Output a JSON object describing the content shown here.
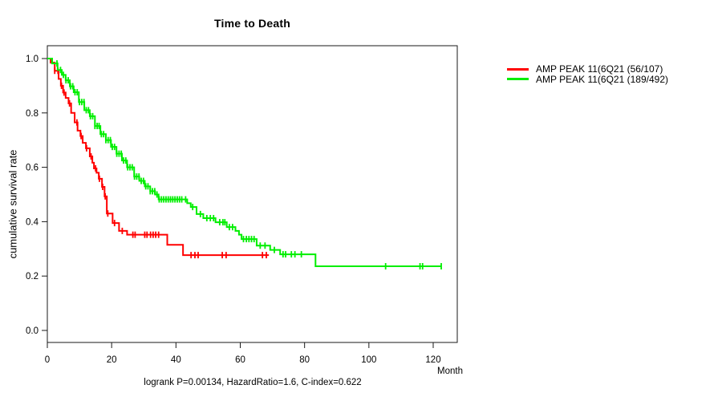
{
  "title": "Time to Death",
  "caption": "logrank P=0.00134, HazardRatio=1.6, C-index=0.622",
  "x_axis_title": "Month",
  "y_axis_title": "cumulative survival rate",
  "legend": {
    "items": [
      {
        "label": "AMP PEAK 11(6Q21 (56/107)",
        "color": "#ff0000"
      },
      {
        "label": "AMP PEAK 11(6Q21 (189/492)",
        "color": "#00ee00"
      }
    ]
  },
  "chart_data": {
    "type": "line",
    "subtype": "kaplan-meier-step",
    "title": "Time to Death",
    "xlabel": "Month",
    "ylabel": "cumulative survival rate",
    "xlim": [
      0,
      127.5
    ],
    "ylim": [
      0,
      1.0
    ],
    "x_ticks": [
      0,
      20,
      40,
      60,
      80,
      100,
      120
    ],
    "y_ticks": [
      0.0,
      0.2,
      0.4,
      0.6,
      0.8,
      1.0
    ],
    "y_tick_labels": [
      "0.0",
      "0.2",
      "0.4",
      "0.6",
      "0.8",
      "1.0"
    ],
    "grid": false,
    "legend_position": "right-outside",
    "series": [
      {
        "name": "AMP PEAK 11(6Q21 (56/107)",
        "color": "#ff0000",
        "end": 68.9,
        "steps": [
          [
            0,
            1.0
          ],
          [
            1,
            0.985
          ],
          [
            2.3,
            0.955
          ],
          [
            3.5,
            0.925
          ],
          [
            4.2,
            0.9
          ],
          [
            4.9,
            0.875
          ],
          [
            5.7,
            0.855
          ],
          [
            6.6,
            0.835
          ],
          [
            7.4,
            0.8
          ],
          [
            8.5,
            0.765
          ],
          [
            9.4,
            0.735
          ],
          [
            10.3,
            0.715
          ],
          [
            11,
            0.69
          ],
          [
            12,
            0.67
          ],
          [
            13.2,
            0.64
          ],
          [
            14,
            0.617
          ],
          [
            14.5,
            0.596
          ],
          [
            15.3,
            0.58
          ],
          [
            16,
            0.558
          ],
          [
            17,
            0.528
          ],
          [
            17.8,
            0.493
          ],
          [
            18.5,
            0.43
          ],
          [
            20.3,
            0.395
          ],
          [
            22.3,
            0.366
          ],
          [
            24.8,
            0.352
          ],
          [
            37.3,
            0.315
          ],
          [
            42.2,
            0.277
          ]
        ],
        "censor_times": [
          2.3,
          3.3,
          4.4,
          5.2,
          6.9,
          9.2,
          10.5,
          12.2,
          13.6,
          15,
          16.2,
          17.2,
          18,
          18.8,
          20.9,
          23.3,
          26.6,
          27.3,
          30.3,
          31,
          32.1,
          32.9,
          33.7,
          34.6,
          44.7,
          45.9,
          46.9,
          54.4,
          55.6,
          66.9,
          68.1
        ]
      },
      {
        "name": "AMP PEAK 11(6Q21 (189/492)",
        "color": "#00ee00",
        "end": 122.6,
        "steps": [
          [
            0,
            1.0
          ],
          [
            1.5,
            0.982
          ],
          [
            3.2,
            0.958
          ],
          [
            4.5,
            0.94
          ],
          [
            5.7,
            0.92
          ],
          [
            7,
            0.898
          ],
          [
            8.2,
            0.876
          ],
          [
            9.8,
            0.84
          ],
          [
            11.5,
            0.81
          ],
          [
            13.2,
            0.788
          ],
          [
            14.8,
            0.752
          ],
          [
            16.5,
            0.722
          ],
          [
            18.2,
            0.7
          ],
          [
            19.8,
            0.675
          ],
          [
            21.5,
            0.65
          ],
          [
            23.2,
            0.625
          ],
          [
            24.8,
            0.6
          ],
          [
            27,
            0.566
          ],
          [
            28.6,
            0.55
          ],
          [
            30.3,
            0.53
          ],
          [
            32,
            0.512
          ],
          [
            33.5,
            0.5
          ],
          [
            34.6,
            0.482
          ],
          [
            43.5,
            0.468
          ],
          [
            44.6,
            0.454
          ],
          [
            46.4,
            0.428
          ],
          [
            48.5,
            0.413
          ],
          [
            52.3,
            0.398
          ],
          [
            55.8,
            0.38
          ],
          [
            58.5,
            0.366
          ],
          [
            59.6,
            0.352
          ],
          [
            60.4,
            0.336
          ],
          [
            65.1,
            0.312
          ],
          [
            69.3,
            0.296
          ],
          [
            72.4,
            0.28
          ],
          [
            83.4,
            0.236
          ]
        ],
        "censor_times": [
          3,
          4.1,
          5,
          5.8,
          6.5,
          7.2,
          7.9,
          8.6,
          9.3,
          10,
          10.7,
          11.4,
          12.1,
          12.8,
          13.4,
          14.1,
          14.8,
          15.5,
          16.1,
          16.8,
          17.5,
          18.2,
          18.9,
          19.6,
          20.2,
          20.9,
          21.6,
          22.3,
          23,
          23.7,
          24.4,
          25,
          25.7,
          26.4,
          27.1,
          27.8,
          28.5,
          29.2,
          29.9,
          30.6,
          31.3,
          32,
          32.7,
          33.4,
          34.1,
          34.8,
          35.5,
          36.2,
          36.9,
          37.6,
          38.3,
          39,
          39.7,
          40.4,
          41.1,
          41.8,
          43,
          45.2,
          47.6,
          49.6,
          50.7,
          51.7,
          53.6,
          54.6,
          55.2,
          56.6,
          57.6,
          61,
          61.9,
          62.7,
          63.5,
          64.3,
          66.2,
          67.7,
          70.6,
          73.3,
          74.1,
          75.9,
          77,
          79,
          105.2,
          115.9,
          116.7,
          122.5
        ]
      }
    ]
  }
}
